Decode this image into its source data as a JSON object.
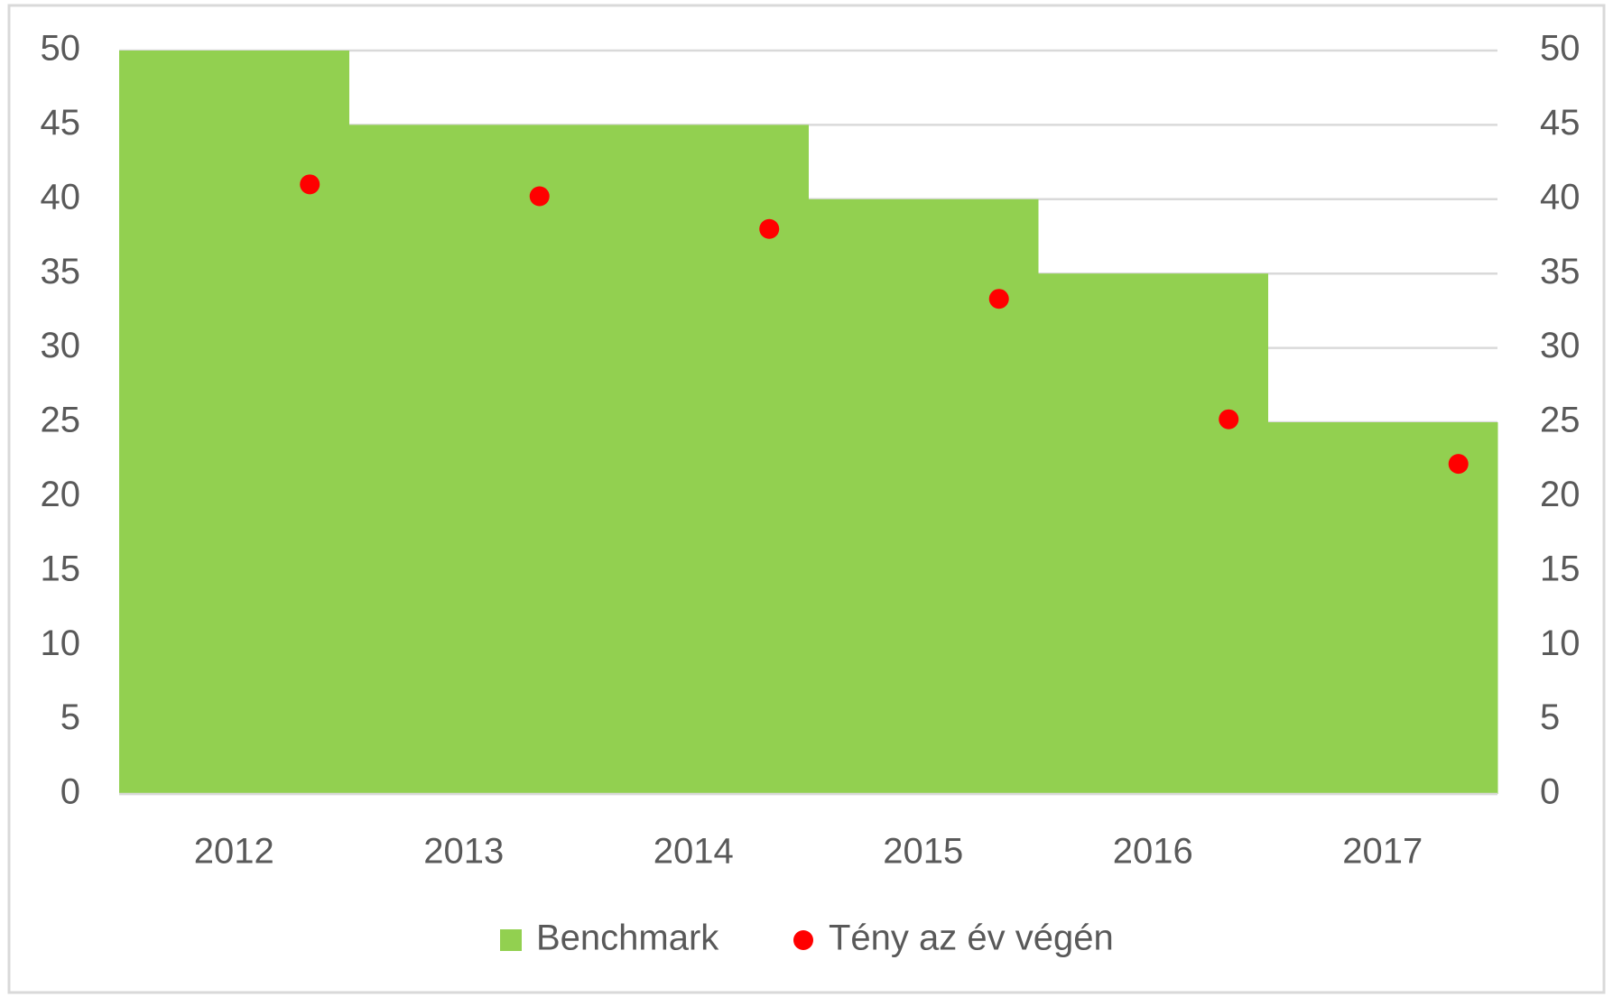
{
  "chart_data": {
    "type": "bar",
    "categories": [
      "2012",
      "2013",
      "2014",
      "2015",
      "2016",
      "2017"
    ],
    "series": [
      {
        "name": "Benchmark",
        "type": "bar",
        "color": "#92d050",
        "values": [
          50,
          45,
          45,
          40,
          35,
          25
        ]
      },
      {
        "name": "Tény az év végén",
        "type": "scatter",
        "axis": "y2",
        "color": "#ff0000",
        "values": [
          41,
          40.2,
          38,
          33.3,
          25.2,
          22.2
        ]
      }
    ],
    "ylim": [
      0,
      50
    ],
    "yticks": [
      0,
      5,
      10,
      15,
      20,
      25,
      30,
      35,
      40,
      45,
      50
    ],
    "y2lim": [
      0,
      50
    ],
    "y2ticks": [
      0,
      5,
      10,
      15,
      20,
      25,
      30,
      35,
      40,
      45,
      50
    ],
    "grid": true,
    "legend": "bottom"
  }
}
